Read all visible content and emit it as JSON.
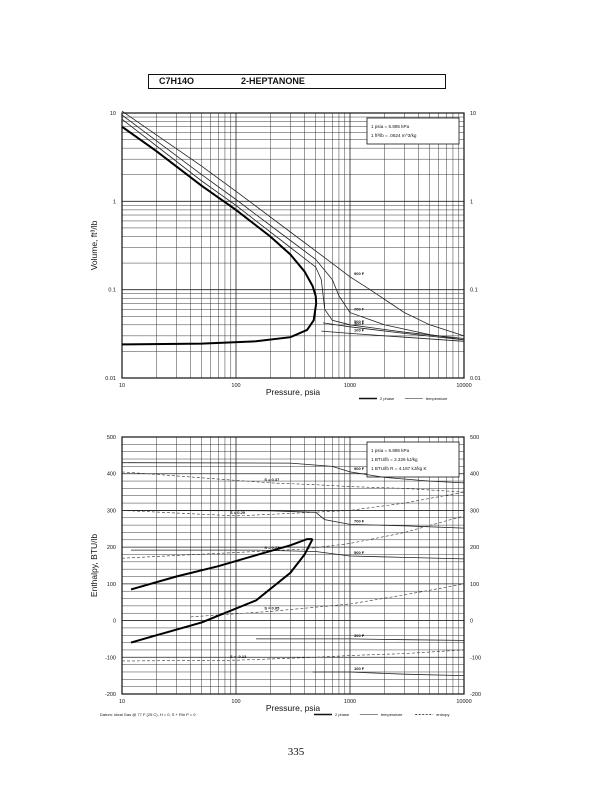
{
  "header": {
    "formula": "C7H14O",
    "name": "2-HEPTANONE"
  },
  "page_number": "335",
  "chart_data": [
    {
      "type": "line",
      "xscale": "log",
      "yscale": "log",
      "xlim": [
        10,
        10000
      ],
      "ylim": [
        0.01,
        10
      ],
      "xlabel": "Pressure,  psia",
      "ylabel": "Volume, ft^3/lb",
      "x_ticks": [
        "10",
        "100",
        "1000",
        "10000"
      ],
      "y_ticks": [
        "0.01",
        "0.1",
        "1",
        "10"
      ],
      "grid": true,
      "conversion_notes": [
        "1 psia  =  6.895 kPa",
        "1 ft^3/lb  =  .0624 m^3/kg"
      ],
      "legend": [
        {
          "label": "2 phase",
          "style": "thick"
        },
        {
          "label": "temperature",
          "style": "thin"
        }
      ],
      "legend_position": "bottom-right",
      "saturation_dome": {
        "name": "2 phase",
        "vapor": [
          [
            10,
            7
          ],
          [
            20,
            3.7
          ],
          [
            50,
            1.5
          ],
          [
            100,
            0.8
          ],
          [
            200,
            0.4
          ],
          [
            300,
            0.25
          ],
          [
            400,
            0.16
          ],
          [
            470,
            0.11
          ],
          [
            500,
            0.085
          ],
          [
            505,
            0.07
          ]
        ],
        "liquid": [
          [
            505,
            0.07
          ],
          [
            480,
            0.045
          ],
          [
            420,
            0.035
          ],
          [
            300,
            0.029
          ],
          [
            150,
            0.026
          ],
          [
            50,
            0.0245
          ],
          [
            10,
            0.024
          ]
        ]
      },
      "isotherms": [
        {
          "label": "900 F",
          "points": [
            [
              10,
              10.5
            ],
            [
              50,
              2.5
            ],
            [
              100,
              1.3
            ],
            [
              300,
              0.45
            ],
            [
              600,
              0.23
            ],
            [
              1000,
              0.14
            ],
            [
              1500,
              0.1
            ],
            [
              3000,
              0.055
            ],
            [
              5000,
              0.04
            ],
            [
              10000,
              0.03
            ]
          ]
        },
        {
          "label": "700 F",
          "points": [
            [
              10,
              9.5
            ],
            [
              50,
              2
            ],
            [
              100,
              1.05
            ],
            [
              300,
              0.36
            ],
            [
              500,
              0.22
            ],
            [
              700,
              0.13
            ],
            [
              800,
              0.085
            ],
            [
              1000,
              0.055
            ],
            [
              2000,
              0.04
            ],
            [
              5000,
              0.031
            ],
            [
              10000,
              0.027
            ]
          ]
        },
        {
          "label": "500 F",
          "points": [
            [
              10,
              8.5
            ],
            [
              50,
              1.7
            ],
            [
              100,
              0.9
            ],
            [
              300,
              0.3
            ],
            [
              500,
              0.18
            ],
            [
              560,
              0.13
            ],
            [
              600,
              0.06
            ],
            [
              700,
              0.045
            ],
            [
              1000,
              0.04
            ],
            [
              3000,
              0.033
            ],
            [
              10000,
              0.028
            ]
          ]
        },
        {
          "label": "300 F",
          "points": [
            [
              580,
              0.042
            ],
            [
              1000,
              0.038
            ],
            [
              3000,
              0.032
            ],
            [
              10000,
              0.027
            ]
          ]
        },
        {
          "label": "100 F",
          "points": [
            [
              560,
              0.034
            ],
            [
              1000,
              0.032
            ],
            [
              3000,
              0.029
            ],
            [
              10000,
              0.026
            ]
          ]
        }
      ]
    },
    {
      "type": "line",
      "xscale": "log",
      "yscale": "linear",
      "xlim": [
        10,
        10000
      ],
      "ylim": [
        -200,
        500
      ],
      "xlabel": "Pressure,  psia",
      "ylabel": "Enthalpy, BTU/lb",
      "x_ticks": [
        "10",
        "100",
        "1000",
        "10000"
      ],
      "y_ticks": [
        "-200",
        "-100",
        "0",
        "100",
        "200",
        "300",
        "400",
        "500"
      ],
      "grid": true,
      "conversion_notes": [
        "1 psia  =  6.895 kPa",
        "1 BTU/lb  =  2.326 kJ/kg",
        "1 BTU/lb R  =  4.187 kJ/kg K"
      ],
      "footnote": "Datum: Ideal Gas @ 77 F (25 C),  H = 0,  S + Rln P = 0",
      "legend": [
        {
          "label": "2 phase",
          "style": "thick"
        },
        {
          "label": "temperature",
          "style": "thin"
        },
        {
          "label": "entropy",
          "style": "dash"
        }
      ],
      "legend_position": "bottom-right",
      "saturation_dome": {
        "name": "2 phase",
        "vapor": [
          [
            12,
            85
          ],
          [
            30,
            120
          ],
          [
            70,
            148
          ],
          [
            150,
            178
          ],
          [
            300,
            205
          ],
          [
            420,
            222
          ],
          [
            470,
            222
          ]
        ],
        "liquid": [
          [
            470,
            222
          ],
          [
            400,
            180
          ],
          [
            300,
            130
          ],
          [
            150,
            55
          ],
          [
            50,
            -5
          ],
          [
            20,
            -40
          ],
          [
            12,
            -60
          ]
        ]
      },
      "isotherms": [
        {
          "label": "900 F",
          "points": [
            [
              10,
              430
            ],
            [
              300,
              429
            ],
            [
              700,
              420
            ],
            [
              1000,
              405
            ],
            [
              2000,
              390
            ],
            [
              5000,
              380
            ],
            [
              10000,
              375
            ]
          ]
        },
        {
          "label": "700 F",
          "points": [
            [
              10,
              300
            ],
            [
              200,
              299
            ],
            [
              500,
              295
            ],
            [
              600,
              275
            ],
            [
              1000,
              262
            ],
            [
              3000,
              258
            ],
            [
              10000,
              252
            ]
          ]
        },
        {
          "label": "500 F",
          "points": [
            [
              12,
              192
            ],
            [
              150,
              192
            ],
            [
              500,
              188
            ],
            [
              1000,
              176
            ],
            [
              3000,
              172
            ],
            [
              10000,
              168
            ]
          ]
        },
        {
          "label": "300 F",
          "points": [
            [
              150,
              -50
            ],
            [
              1000,
              -50
            ],
            [
              3000,
              -52
            ],
            [
              10000,
              -54
            ]
          ]
        },
        {
          "label": "100 F",
          "points": [
            [
              470,
              -140
            ],
            [
              1000,
              -140
            ],
            [
              3000,
              -146
            ],
            [
              10000,
              -150
            ]
          ]
        }
      ],
      "entropy_lines": [
        {
          "label": "S = 0.37",
          "points": [
            [
              10,
              405
            ],
            [
              200,
              375
            ],
            [
              500,
              370
            ],
            [
              1000,
              365
            ],
            [
              3000,
              360
            ],
            [
              10000,
              350
            ]
          ]
        },
        {
          "label": "S = 0.29",
          "points": [
            [
              10,
              300
            ],
            [
              100,
              285
            ],
            [
              300,
              292
            ],
            [
              1000,
              300
            ],
            [
              3000,
              320
            ],
            [
              10000,
              350
            ]
          ]
        },
        {
          "label": "S = 0.23",
          "points": [
            [
              10,
              170
            ],
            [
              200,
              190
            ],
            [
              400,
              195
            ],
            [
              1000,
              210
            ],
            [
              3000,
              240
            ],
            [
              10000,
              285
            ]
          ]
        },
        {
          "label": "S = 0.05",
          "points": [
            [
              40,
              10
            ],
            [
              200,
              25
            ],
            [
              1000,
              45
            ],
            [
              3000,
              70
            ],
            [
              10000,
              100
            ]
          ]
        },
        {
          "label": "S = -0.13",
          "points": [
            [
              10,
              -110
            ],
            [
              100,
              -108
            ],
            [
              500,
              -100
            ],
            [
              1000,
              -95
            ],
            [
              3000,
              -90
            ],
            [
              10000,
              -80
            ]
          ]
        }
      ]
    }
  ]
}
